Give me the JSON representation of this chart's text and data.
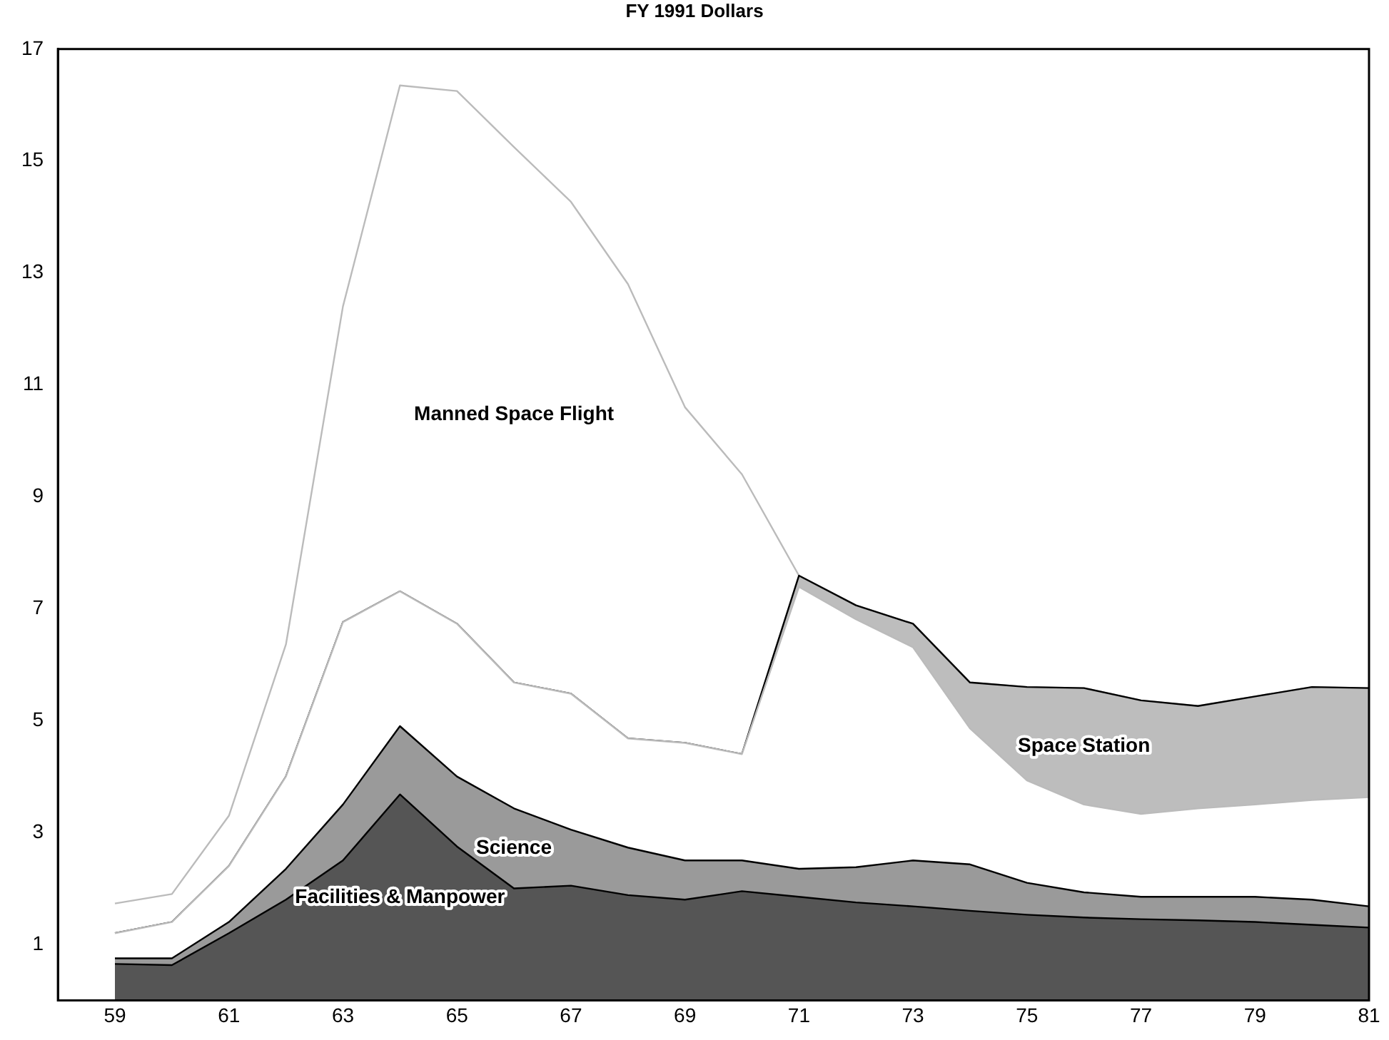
{
  "chart_data": {
    "type": "area",
    "title": "FY 1991 Dollars",
    "stacked": true,
    "x": [
      59,
      60,
      61,
      62,
      63,
      64,
      65,
      66,
      67,
      68,
      69,
      70,
      71,
      72,
      73,
      74,
      75,
      76,
      77,
      78,
      79,
      80,
      81
    ],
    "xlim": [
      58,
      81
    ],
    "xticks": [
      59,
      61,
      63,
      65,
      67,
      69,
      71,
      73,
      75,
      77,
      79,
      81
    ],
    "ylim": [
      0,
      17
    ],
    "yticks": [
      1,
      3,
      5,
      7,
      9,
      11,
      13,
      15,
      17
    ],
    "grid": false,
    "legend": false,
    "marker": "none",
    "series": [
      {
        "name": "Facilities & Manpower",
        "color": "#555555",
        "values": [
          0.65,
          0.63,
          1.2,
          1.8,
          2.5,
          3.68,
          2.75,
          2.0,
          2.05,
          1.88,
          1.8,
          1.95,
          1.85,
          1.75,
          1.68,
          1.6,
          1.53,
          1.48,
          1.45,
          1.43,
          1.4,
          1.35,
          1.3
        ]
      },
      {
        "name": "Science",
        "color": "#9a9a9a",
        "values": [
          0.1,
          0.12,
          0.2,
          0.55,
          1.0,
          1.22,
          1.25,
          1.43,
          1.0,
          0.85,
          0.7,
          0.55,
          0.5,
          0.63,
          0.82,
          0.83,
          0.57,
          0.45,
          0.4,
          0.42,
          0.45,
          0.45,
          0.38
        ]
      },
      {
        "color": "#ffffff",
        "values": [
          0.45,
          0.65,
          1.0,
          1.65,
          3.26,
          2.41,
          2.73,
          2.25,
          2.43,
          1.95,
          2.1,
          1.9,
          5.04,
          4.43,
          3.81,
          2.43,
          1.83,
          1.57,
          1.48,
          1.58,
          1.65,
          1.78,
          1.95
        ]
      },
      {
        "name": "Space Station",
        "color": "#bdbdbd",
        "values": [
          0,
          0,
          0,
          0,
          0,
          0,
          0,
          0,
          0,
          0,
          0,
          0,
          0.2,
          0.25,
          0.42,
          0.82,
          1.67,
          2.08,
          2.03,
          1.83,
          1.93,
          2.02,
          1.95
        ]
      },
      {
        "name": "Manned Space Flight",
        "color": "#ffffff",
        "values": [
          0.53,
          0.5,
          0.9,
          2.36,
          5.64,
          9.04,
          9.52,
          9.57,
          8.79,
          8.12,
          6.0,
          5.0,
          0,
          0,
          0,
          0,
          0,
          0,
          0,
          0,
          0,
          0,
          0
        ]
      }
    ]
  }
}
